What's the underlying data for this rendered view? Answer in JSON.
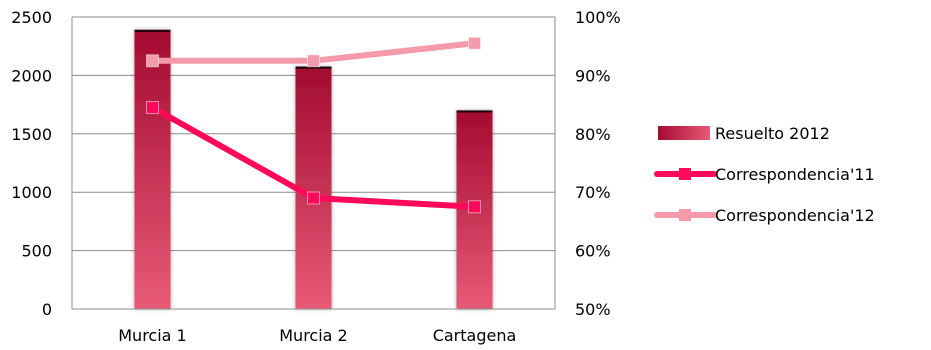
{
  "chart_data": {
    "type": "bar",
    "title": "",
    "xlabel": "",
    "ylabel": "",
    "categories": [
      "Murcia 1",
      "Murcia 2",
      "Cartagena"
    ],
    "y_left": {
      "ylim": [
        0,
        2500
      ],
      "ticks": [
        0,
        500,
        1000,
        1500,
        2000,
        2500
      ],
      "tick_labels": [
        "0",
        "500",
        "1000",
        "1500",
        "2000",
        "2500"
      ]
    },
    "y_right": {
      "ylim": [
        0.5,
        1.0
      ],
      "ticks": [
        0.5,
        0.6,
        0.7,
        0.8,
        0.9,
        1.0
      ],
      "tick_labels": [
        "50%",
        "60%",
        "70%",
        "80%",
        "90%",
        "100%"
      ]
    },
    "series": [
      {
        "name": "Resuelto 2012",
        "kind": "bar",
        "axis": "left",
        "values": [
          2390,
          2075,
          1700
        ],
        "color": "#b0123a"
      },
      {
        "name": "Correspondencia'11",
        "kind": "line",
        "axis": "right",
        "values": [
          0.845,
          0.69,
          0.675
        ],
        "color": "#ff0a5a"
      },
      {
        "name": "Correspondencia'12",
        "kind": "line",
        "axis": "right",
        "values": [
          0.925,
          0.925,
          0.955
        ],
        "color": "#f59aaa"
      }
    ],
    "grid": true,
    "legend_position": "right"
  }
}
